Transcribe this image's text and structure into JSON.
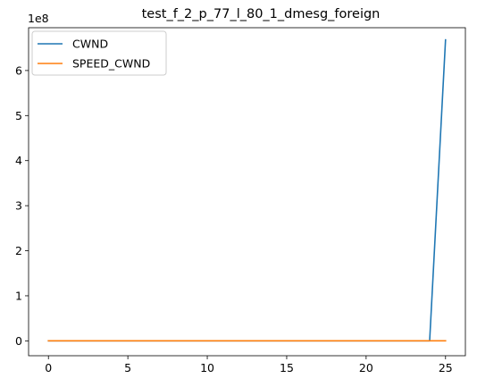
{
  "chart_data": {
    "type": "line",
    "title": "test_f_2_p_77_l_80_1_dmesg_foreign",
    "xlabel": "",
    "ylabel": "",
    "y_offset_label": "1e8",
    "xlim": [
      -1.25,
      26.25
    ],
    "ylim": [
      -0.33,
      6.95
    ],
    "y_scale_note": "y values in units of 1e8",
    "x_ticks": [
      0,
      5,
      10,
      15,
      20,
      25
    ],
    "x_tick_labels": [
      "0",
      "5",
      "10",
      "15",
      "20",
      "25"
    ],
    "y_ticks": [
      0,
      1,
      2,
      3,
      4,
      5,
      6
    ],
    "y_tick_labels": [
      "0",
      "1",
      "2",
      "3",
      "4",
      "5",
      "6"
    ],
    "grid": false,
    "legend_position": "top-left",
    "x": [
      0,
      1,
      2,
      3,
      4,
      5,
      6,
      7,
      8,
      9,
      10,
      11,
      12,
      13,
      14,
      15,
      16,
      17,
      18,
      19,
      20,
      21,
      22,
      23,
      24,
      25
    ],
    "series": [
      {
        "name": "CWND",
        "color": "#1f77b4",
        "values": [
          0,
          0,
          0,
          0,
          0,
          0,
          0,
          0,
          0,
          0,
          0,
          0,
          0,
          0,
          0,
          0,
          0,
          0,
          0,
          0,
          0,
          0,
          0,
          0,
          0,
          6.68
        ]
      },
      {
        "name": "SPEED_CWND",
        "color": "#ff7f0e",
        "values": [
          0,
          0,
          0,
          0,
          0,
          0,
          0,
          0,
          0,
          0,
          0,
          0,
          0,
          0,
          0,
          0,
          0,
          0,
          0,
          0,
          0,
          0,
          0,
          0,
          0,
          0
        ]
      }
    ]
  }
}
